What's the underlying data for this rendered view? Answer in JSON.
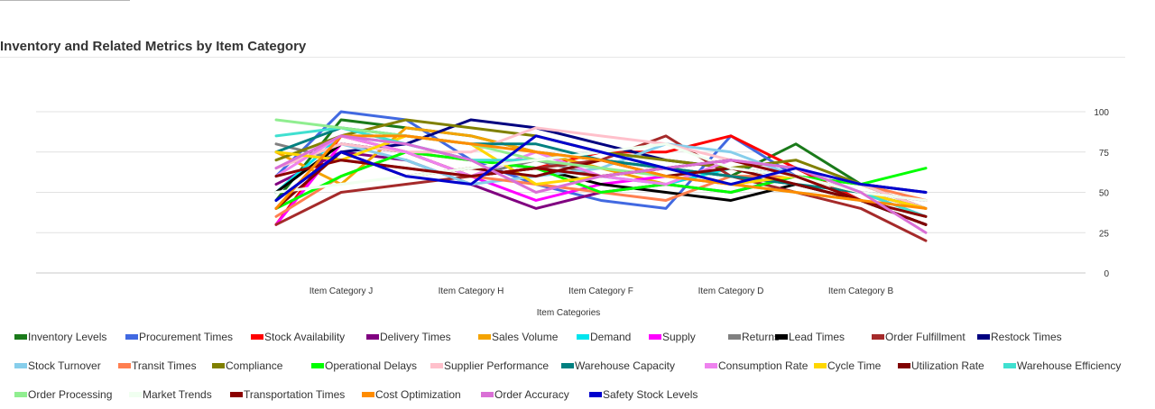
{
  "title": "Inventory and Related Metrics by Item Category",
  "chart_data": {
    "type": "line",
    "title": "Inventory and Related Metrics by Item Category",
    "xlabel": "Item Categories",
    "ylabel": "",
    "ylim": [
      0,
      100
    ],
    "yticks": [
      0,
      25,
      50,
      75,
      100
    ],
    "y_axis_position": "right",
    "grid": true,
    "legend_position": "bottom",
    "x": [
      "",
      "Item Category J",
      "",
      "Item Category H",
      "",
      "Item Category F",
      "",
      "Item Category D",
      "",
      "Item Category B",
      ""
    ],
    "series": [
      {
        "name": "Inventory Levels",
        "color": "#1a7a1a",
        "values": [
          45,
          95,
          90,
          85,
          75,
          70,
          65,
          60,
          80,
          55,
          40
        ]
      },
      {
        "name": "Procurement Times",
        "color": "#4169e1",
        "values": [
          60,
          100,
          95,
          70,
          55,
          45,
          40,
          85,
          60,
          45,
          30
        ]
      },
      {
        "name": "Stock Availability",
        "color": "#ff0000",
        "values": [
          30,
          85,
          75,
          70,
          65,
          75,
          75,
          85,
          65,
          45,
          30
        ]
      },
      {
        "name": "Delivery Times",
        "color": "#800080",
        "values": [
          55,
          75,
          70,
          55,
          40,
          50,
          55,
          50,
          60,
          50,
          45
        ]
      },
      {
        "name": "Sales Volume",
        "color": "#f4a300",
        "values": [
          75,
          55,
          90,
          85,
          75,
          65,
          55,
          65,
          60,
          45,
          35
        ]
      },
      {
        "name": "Demand",
        "color": "#00e5ee",
        "values": [
          50,
          85,
          80,
          70,
          65,
          60,
          55,
          65,
          60,
          50,
          40
        ]
      },
      {
        "name": "Supply",
        "color": "#ff00ff",
        "values": [
          30,
          80,
          75,
          60,
          45,
          55,
          60,
          55,
          60,
          50,
          35
        ]
      },
      {
        "name": "Returns",
        "color": "#808080",
        "values": [
          80,
          70,
          65,
          60,
          70,
          60,
          65,
          60,
          55,
          45,
          35
        ]
      },
      {
        "name": "Lead Times",
        "color": "#000000",
        "values": [
          50,
          80,
          75,
          60,
          65,
          55,
          50,
          45,
          55,
          45,
          30
        ]
      },
      {
        "name": "Order Fulfillment",
        "color": "#a52a2a",
        "values": [
          30,
          50,
          55,
          60,
          65,
          70,
          85,
          60,
          50,
          40,
          20
        ]
      },
      {
        "name": "Restock Times",
        "color": "#000080",
        "values": [
          45,
          75,
          80,
          95,
          90,
          80,
          70,
          65,
          60,
          55,
          50
        ]
      },
      {
        "name": "Stock Turnover",
        "color": "#87ceeb",
        "values": [
          65,
          80,
          70,
          55,
          60,
          65,
          80,
          75,
          60,
          45,
          35
        ]
      },
      {
        "name": "Transit Times",
        "color": "#ff7f50",
        "values": [
          35,
          60,
          75,
          60,
          55,
          50,
          45,
          60,
          60,
          55,
          45
        ]
      },
      {
        "name": "Compliance",
        "color": "#808000",
        "values": [
          70,
          85,
          95,
          90,
          85,
          75,
          70,
          65,
          70,
          55,
          40
        ]
      },
      {
        "name": "Operational Delays",
        "color": "#00ff00",
        "values": [
          40,
          60,
          75,
          70,
          65,
          50,
          55,
          50,
          60,
          55,
          65
        ]
      },
      {
        "name": "Supplier Performance",
        "color": "#ffc0cb",
        "values": [
          65,
          80,
          75,
          75,
          90,
          85,
          80,
          70,
          65,
          55,
          40
        ]
      },
      {
        "name": "Warehouse Capacity",
        "color": "#008080",
        "values": [
          75,
          90,
          85,
          80,
          80,
          70,
          65,
          60,
          55,
          50,
          40
        ]
      },
      {
        "name": "Consumption Rate",
        "color": "#ee82ee",
        "values": [
          60,
          85,
          75,
          60,
          75,
          60,
          55,
          70,
          60,
          50,
          40
        ]
      },
      {
        "name": "Cycle Time",
        "color": "#ffd700",
        "values": [
          75,
          70,
          85,
          80,
          55,
          60,
          65,
          55,
          60,
          50,
          40
        ]
      },
      {
        "name": "Utilization Rate",
        "color": "#800000",
        "values": [
          40,
          75,
          60,
          65,
          60,
          70,
          60,
          65,
          55,
          45,
          30
        ]
      },
      {
        "name": "Warehouse Efficiency",
        "color": "#40e0d0",
        "values": [
          85,
          90,
          80,
          70,
          70,
          75,
          65,
          70,
          65,
          50,
          35
        ]
      },
      {
        "name": "Order Processing",
        "color": "#90ee90",
        "values": [
          95,
          90,
          85,
          80,
          70,
          65,
          60,
          55,
          50,
          45,
          35
        ]
      },
      {
        "name": "Market Trends",
        "color": "#f0fff0",
        "values": [
          50,
          55,
          60,
          65,
          70,
          75,
          80,
          65,
          60,
          50,
          45
        ]
      },
      {
        "name": "Transportation Times",
        "color": "#8b0000",
        "values": [
          60,
          70,
          65,
          60,
          65,
          60,
          65,
          70,
          60,
          45,
          35
        ]
      },
      {
        "name": "Cost Optimization",
        "color": "#ff8c00",
        "values": [
          40,
          85,
          85,
          80,
          75,
          70,
          60,
          55,
          50,
          45,
          40
        ]
      },
      {
        "name": "Order Accuracy",
        "color": "#da70d6",
        "values": [
          65,
          85,
          80,
          70,
          50,
          60,
          65,
          70,
          65,
          50,
          25
        ]
      },
      {
        "name": "Safety Stock Levels",
        "color": "#0000cd",
        "values": [
          45,
          75,
          60,
          55,
          85,
          75,
          65,
          55,
          65,
          55,
          50
        ]
      }
    ]
  }
}
